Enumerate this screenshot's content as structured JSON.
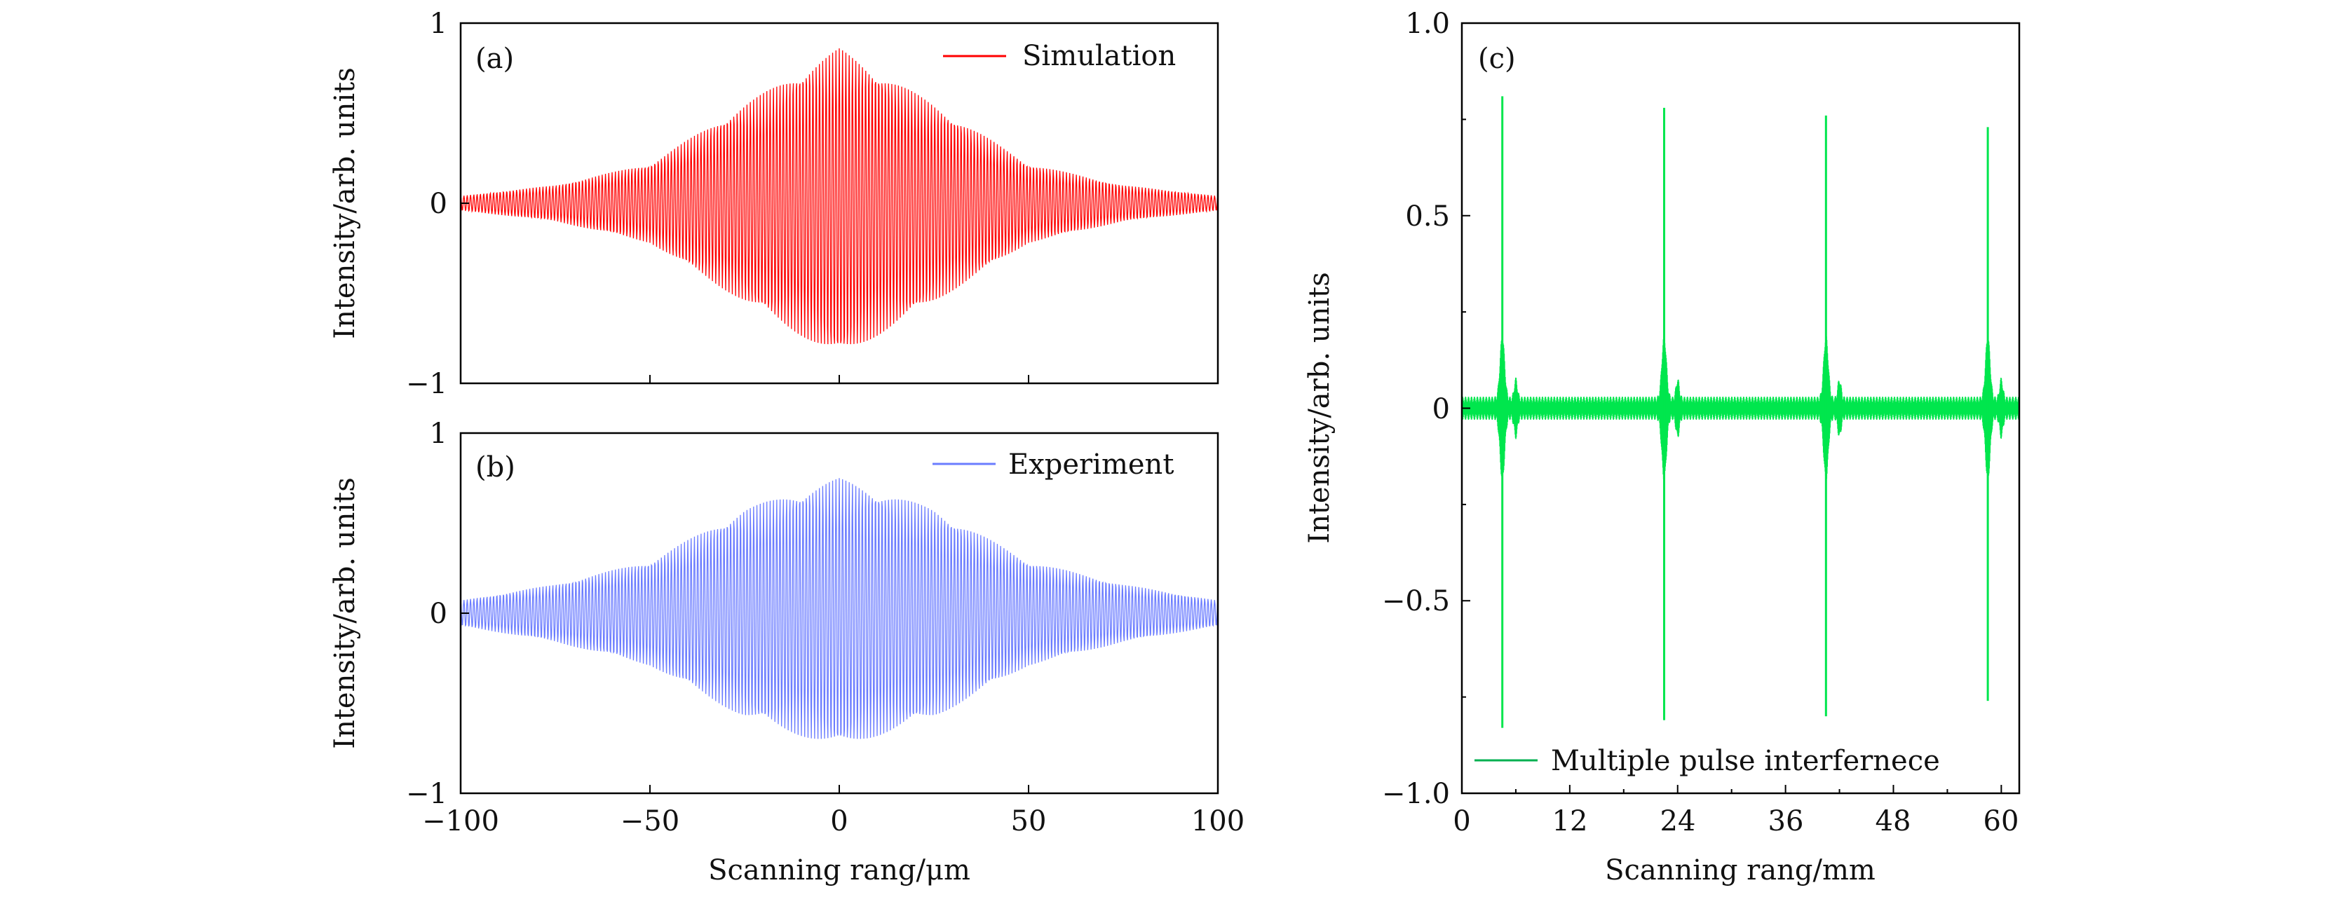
{
  "chart_data": [
    {
      "panel": "(a)",
      "type": "line",
      "title": "",
      "xlabel": "",
      "ylabel": "Intensity/arb. units",
      "xlim": [
        -100,
        100
      ],
      "ylim": [
        -1,
        1
      ],
      "yticks": [
        -1,
        0,
        1
      ],
      "ytick_labels": [
        "−1",
        "0",
        "1"
      ],
      "xticks": [
        -100,
        -50,
        0,
        50,
        100
      ],
      "xtick_labels": [],
      "legend_position": "top-right",
      "grid": false,
      "series": [
        {
          "name": "Simulation",
          "color": "#ff0000",
          "fringe_amplitude": [
            {
              "x": -100,
              "a": 0.04
            },
            {
              "x": -75,
              "a": 0.1
            },
            {
              "x": -50,
              "a": 0.22
            },
            {
              "x": -25,
              "a": 0.55
            },
            {
              "x": 0,
              "a": 0.86
            },
            {
              "x": 25,
              "a": 0.55
            },
            {
              "x": 50,
              "a": 0.22
            },
            {
              "x": 75,
              "a": 0.1
            },
            {
              "x": 100,
              "a": 0.04
            }
          ]
        }
      ]
    },
    {
      "panel": "(b)",
      "type": "line",
      "title": "",
      "xlabel": "Scanning rang/μm",
      "ylabel": "Intensity/arb. units",
      "xlim": [
        -100,
        100
      ],
      "ylim": [
        -1,
        1
      ],
      "yticks": [
        -1,
        0,
        1
      ],
      "ytick_labels": [
        "−1",
        "0",
        "1"
      ],
      "xticks": [
        -100,
        -50,
        0,
        50,
        100
      ],
      "xtick_labels": [
        "−100",
        "−50",
        "0",
        "50",
        "100"
      ],
      "legend_position": "top-right",
      "grid": false,
      "series": [
        {
          "name": "Experiment",
          "color": "#6b7cff",
          "fringe_amplitude": [
            {
              "x": -100,
              "a": 0.07
            },
            {
              "x": -75,
              "a": 0.16
            },
            {
              "x": -50,
              "a": 0.29
            },
            {
              "x": -25,
              "a": 0.58
            },
            {
              "x": 0,
              "a": 0.75
            },
            {
              "x": 25,
              "a": 0.58
            },
            {
              "x": 50,
              "a": 0.29
            },
            {
              "x": 75,
              "a": 0.16
            },
            {
              "x": 100,
              "a": 0.07
            }
          ]
        }
      ]
    },
    {
      "panel": "(c)",
      "type": "line",
      "title": "",
      "xlabel": "Scanning rang/mm",
      "ylabel": "Intensity/arb. units",
      "xlim": [
        0,
        62
      ],
      "ylim": [
        -1.0,
        1.0
      ],
      "yticks": [
        -1.0,
        -0.5,
        0,
        0.5,
        1.0
      ],
      "ytick_labels": [
        "−1.0",
        "−0.5",
        "0",
        "0.5",
        "1.0"
      ],
      "xticks": [
        0,
        12,
        24,
        36,
        48,
        60
      ],
      "xtick_labels": [
        "0",
        "12",
        "24",
        "36",
        "48",
        "60"
      ],
      "legend_position": "bottom-right",
      "grid": false,
      "noise_amplitude": 0.03,
      "series": [
        {
          "name": "Multiple pulse interfernece",
          "color": "#00e64d",
          "legend_color": "#00b050",
          "peaks": [
            {
              "x": 4.5,
              "max": 0.81,
              "min": -0.83
            },
            {
              "x": 22.5,
              "max": 0.78,
              "min": -0.81
            },
            {
              "x": 40.5,
              "max": 0.76,
              "min": -0.8
            },
            {
              "x": 58.5,
              "max": 0.73,
              "min": -0.76
            }
          ]
        }
      ]
    }
  ]
}
